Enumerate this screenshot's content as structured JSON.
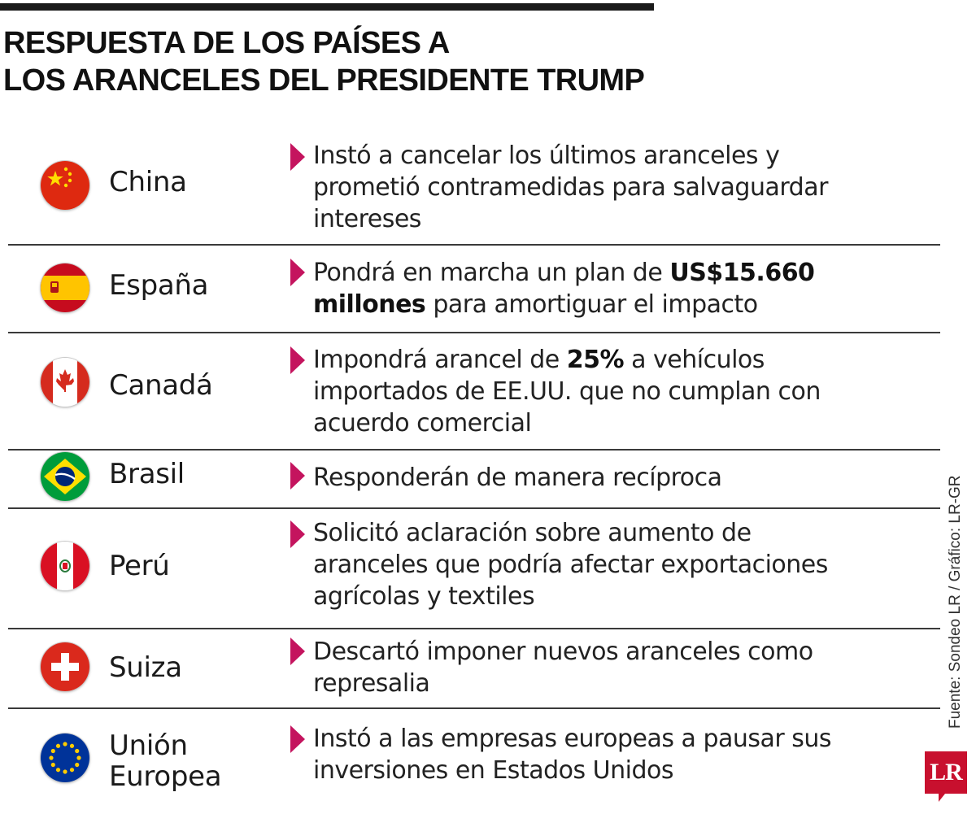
{
  "title": {
    "line1": "RESPUESTA DE LOS PAÍSES A",
    "line2": "LOS ARANCELES DEL PRESIDENTE TRUMP"
  },
  "rows": [
    {
      "country": "China",
      "flag_icon": "china-flag-icon",
      "desc": [
        "Instó a cancelar los últimos aranceles y",
        "prometió contramedidas para salvaguardar",
        "intereses"
      ]
    },
    {
      "country": "España",
      "flag_icon": "spain-flag-icon",
      "desc_parts": [
        "Pondrá en marcha un plan de ",
        "US$15.660",
        "millones",
        " para amortiguar el impacto"
      ]
    },
    {
      "country": "Canadá",
      "flag_icon": "canada-flag-icon",
      "desc_parts": [
        "Impondrá arancel de ",
        "25%",
        " a vehículos",
        "importados de EE.UU. que no cumplan con",
        "acuerdo comercial"
      ]
    },
    {
      "country": "Brasil",
      "flag_icon": "brazil-flag-icon",
      "desc": [
        "Responderán de manera recíproca"
      ]
    },
    {
      "country": "Perú",
      "flag_icon": "peru-flag-icon",
      "desc": [
        "Solicitó aclaración sobre aumento de",
        "aranceles que podría afectar exportaciones",
        "agrícolas y textiles"
      ]
    },
    {
      "country": "Suiza",
      "flag_icon": "switzerland-flag-icon",
      "desc": [
        "Descartó imponer nuevos aranceles como",
        "represalia"
      ]
    },
    {
      "country_line1": "Unión",
      "country_line2": "Europea",
      "flag_icon": "eu-flag-icon",
      "desc": [
        "Instó a las empresas europeas a pausar sus",
        "inversiones en Estados Unidos"
      ]
    }
  ],
  "source": "Fuente: Sondeo LR / Gráfico: LR-GR",
  "logo": "LR",
  "colors": {
    "accent": "#c4145e",
    "logo": "#c8102e",
    "text": "#1a1a1a"
  }
}
